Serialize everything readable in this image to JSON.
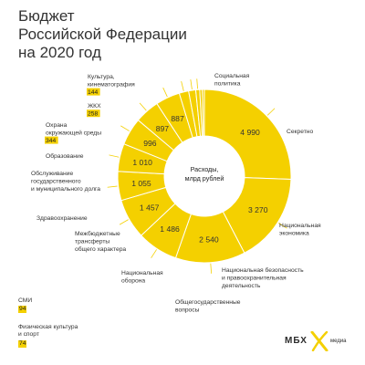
{
  "title": {
    "line1": "Бюджет",
    "line2": "Российской Федерации",
    "line3": "на 2020 год"
  },
  "center_label": {
    "line1": "Расходы,",
    "line2": "млрд рублей"
  },
  "colors": {
    "donut": "#f4d000",
    "divider": "#ffffff",
    "leader": "#f4d000",
    "highlight": "#f4d000"
  },
  "chart_data": {
    "type": "pie",
    "title": "Бюджет Российской Федерации на 2020 год",
    "center": "Расходы, млрд рублей",
    "categories": [
      "Социальная политика",
      "Секретно",
      "Национальная экономика",
      "Национальная безопасность и правоохранительная деятельность",
      "Общегосударственные вопросы",
      "Национальная оборона",
      "Межбюджетные трансферты общего характера",
      "Здравоохранение",
      "Обслуживание государственного и муниципального долга",
      "Образование",
      "Охрана окружающей среды",
      "ЖКХ",
      "Культура, кинематография",
      "СМИ",
      "Физическая культура и спорт"
    ],
    "values": [
      4990,
      3270,
      2540,
      1486,
      1457,
      1055,
      1010,
      996,
      897,
      887,
      344,
      258,
      144,
      94,
      74
    ],
    "value_labels": [
      "4 990",
      "3 270",
      "2 540",
      "1 486",
      "1 457",
      "1 055",
      "1 010",
      "996",
      "897",
      "887",
      "344",
      "258",
      "144",
      "94",
      "74"
    ],
    "label_lines": [
      [
        "Социальная",
        "политика"
      ],
      [
        "Секретно"
      ],
      [
        "Национальная",
        "экономика"
      ],
      [
        "Национальная безопасность",
        "и правоохранительная",
        "деятельность"
      ],
      [
        "Общегосударственные",
        "вопросы"
      ],
      [
        "Национальная",
        "оборона"
      ],
      [
        "Межбюджетные",
        "трансферты",
        "общего характера"
      ],
      [
        "Здравоохранение"
      ],
      [
        "Обслуживание",
        "государственного",
        "и муниципального долга"
      ],
      [
        "Образование"
      ],
      [
        "Охрана",
        "окружающей среды"
      ],
      [
        "ЖКХ"
      ],
      [
        "Культура,",
        "кинематография"
      ],
      [
        "СМИ"
      ],
      [
        "Физическая культура",
        "и спорт"
      ]
    ]
  },
  "brand": {
    "mbx": "МБХ",
    "media": "медиа"
  }
}
